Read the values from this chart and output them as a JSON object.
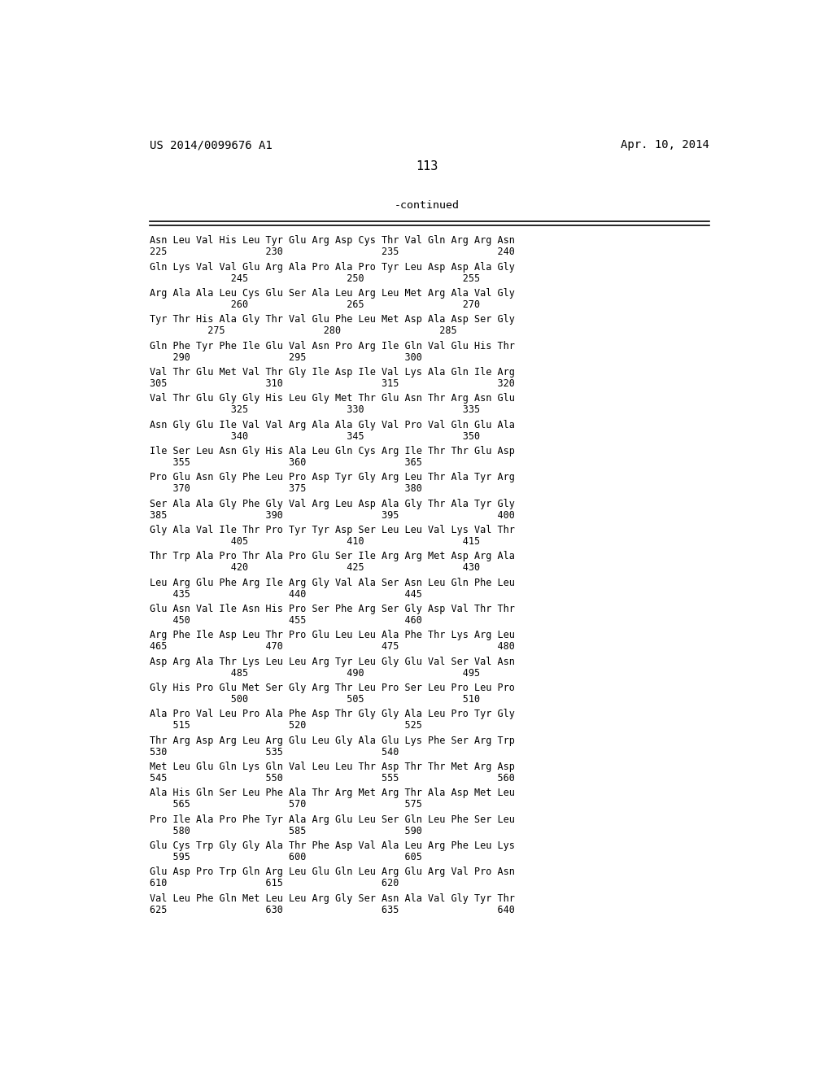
{
  "background_color": "#ffffff",
  "header_left": "US 2014/0099676 A1",
  "header_right": "Apr. 10, 2014",
  "page_number": "113",
  "continued_label": "-continued",
  "lines": [
    [
      "Asn Leu Val His Leu Tyr Glu Arg Asp Cys Thr Val Gln Arg Arg Asn",
      "225                 230                 235                 240"
    ],
    [
      "Gln Lys Val Val Glu Arg Ala Pro Ala Pro Tyr Leu Asp Asp Ala Gly",
      "              245                 250                 255"
    ],
    [
      "Arg Ala Ala Leu Cys Glu Ser Ala Leu Arg Leu Met Arg Ala Val Gly",
      "              260                 265                 270"
    ],
    [
      "Tyr Thr His Ala Gly Thr Val Glu Phe Leu Met Asp Ala Asp Ser Gly",
      "          275                 280                 285"
    ],
    [
      "Gln Phe Tyr Phe Ile Glu Val Asn Pro Arg Ile Gln Val Glu His Thr",
      "    290                 295                 300"
    ],
    [
      "Val Thr Glu Met Val Thr Gly Ile Asp Ile Val Lys Ala Gln Ile Arg",
      "305                 310                 315                 320"
    ],
    [
      "Val Thr Glu Gly Gly His Leu Gly Met Thr Glu Asn Thr Arg Asn Glu",
      "              325                 330                 335"
    ],
    [
      "Asn Gly Glu Ile Val Val Arg Ala Ala Gly Val Pro Val Gln Glu Ala",
      "              340                 345                 350"
    ],
    [
      "Ile Ser Leu Asn Gly His Ala Leu Gln Cys Arg Ile Thr Thr Glu Asp",
      "    355                 360                 365"
    ],
    [
      "Pro Glu Asn Gly Phe Leu Pro Asp Tyr Gly Arg Leu Thr Ala Tyr Arg",
      "    370                 375                 380"
    ],
    [
      "Ser Ala Ala Gly Phe Gly Val Arg Leu Asp Ala Gly Thr Ala Tyr Gly",
      "385                 390                 395                 400"
    ],
    [
      "Gly Ala Val Ile Thr Pro Tyr Tyr Asp Ser Leu Leu Val Lys Val Thr",
      "              405                 410                 415"
    ],
    [
      "Thr Trp Ala Pro Thr Ala Pro Glu Ser Ile Arg Arg Met Asp Arg Ala",
      "              420                 425                 430"
    ],
    [
      "Leu Arg Glu Phe Arg Ile Arg Gly Val Ala Ser Asn Leu Gln Phe Leu",
      "    435                 440                 445"
    ],
    [
      "Glu Asn Val Ile Asn His Pro Ser Phe Arg Ser Gly Asp Val Thr Thr",
      "    450                 455                 460"
    ],
    [
      "Arg Phe Ile Asp Leu Thr Pro Glu Leu Leu Ala Phe Thr Lys Arg Leu",
      "465                 470                 475                 480"
    ],
    [
      "Asp Arg Ala Thr Lys Leu Leu Arg Tyr Leu Gly Glu Val Ser Val Asn",
      "              485                 490                 495"
    ],
    [
      "Gly His Pro Glu Met Ser Gly Arg Thr Leu Pro Ser Leu Pro Leu Pro",
      "              500                 505                 510"
    ],
    [
      "Ala Pro Val Leu Pro Ala Phe Asp Thr Gly Gly Ala Leu Pro Tyr Gly",
      "    515                 520                 525"
    ],
    [
      "Thr Arg Asp Arg Leu Arg Glu Leu Gly Ala Glu Lys Phe Ser Arg Trp",
      "530                 535                 540"
    ],
    [
      "Met Leu Glu Gln Lys Gln Val Leu Leu Thr Asp Thr Thr Met Arg Asp",
      "545                 550                 555                 560"
    ],
    [
      "Ala His Gln Ser Leu Phe Ala Thr Arg Met Arg Thr Ala Asp Met Leu",
      "    565                 570                 575"
    ],
    [
      "Pro Ile Ala Pro Phe Tyr Ala Arg Glu Leu Ser Gln Leu Phe Ser Leu",
      "    580                 585                 590"
    ],
    [
      "Glu Cys Trp Gly Gly Ala Thr Phe Asp Val Ala Leu Arg Phe Leu Lys",
      "    595                 600                 605"
    ],
    [
      "Glu Asp Pro Trp Gln Arg Leu Glu Gln Leu Arg Glu Arg Val Pro Asn",
      "610                 615                 620"
    ],
    [
      "Val Leu Phe Gln Met Leu Leu Arg Gly Ser Asn Ala Val Gly Tyr Thr",
      "625                 630                 635                 640"
    ]
  ]
}
